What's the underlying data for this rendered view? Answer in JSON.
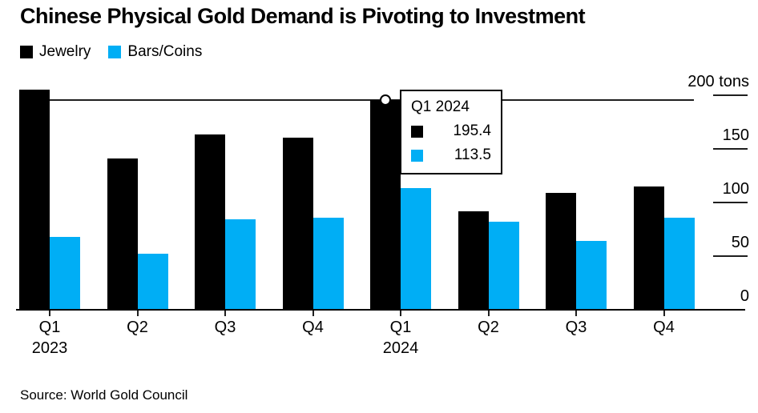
{
  "title": "Chinese Physical Gold Demand is Pivoting to Investment",
  "source": "Source: World Gold Council",
  "legend": [
    {
      "label": "Jewelry",
      "color": "#000000"
    },
    {
      "label": "Bars/Coins",
      "color": "#00aef5"
    }
  ],
  "tooltip": {
    "title": "Q1 2024",
    "rows": [
      {
        "series": "Jewelry",
        "color": "#000000",
        "value": "195.4"
      },
      {
        "series": "Bars/Coins",
        "color": "#00aef5",
        "value": "113.5"
      }
    ]
  },
  "y_axis": {
    "ticks": [
      {
        "value": 200,
        "label": "200 tons"
      },
      {
        "value": 150,
        "label": "150"
      },
      {
        "value": 100,
        "label": "100"
      },
      {
        "value": 50,
        "label": "50"
      },
      {
        "value": 0,
        "label": "0"
      }
    ]
  },
  "x_axis": {
    "labels": [
      {
        "q": "Q1",
        "year": "2023"
      },
      {
        "q": "Q2",
        "year": ""
      },
      {
        "q": "Q3",
        "year": ""
      },
      {
        "q": "Q4",
        "year": ""
      },
      {
        "q": "Q1",
        "year": "2024"
      },
      {
        "q": "Q2",
        "year": ""
      },
      {
        "q": "Q3",
        "year": ""
      },
      {
        "q": "Q4",
        "year": ""
      }
    ]
  },
  "chart_data": {
    "type": "bar",
    "title": "Chinese Physical Gold Demand is Pivoting to Investment",
    "unit": "tons",
    "categories": [
      "Q1 2023",
      "Q2 2023",
      "Q3 2023",
      "Q4 2023",
      "Q1 2024",
      "Q2 2024",
      "Q3 2024",
      "Q4 2024"
    ],
    "series": [
      {
        "name": "Jewelry",
        "color": "#000000",
        "values": [
          205,
          141,
          163,
          160,
          195.4,
          92,
          109,
          115
        ]
      },
      {
        "name": "Bars/Coins",
        "color": "#00aef5",
        "values": [
          68,
          52,
          84,
          86,
          113.5,
          82,
          64,
          86
        ]
      }
    ],
    "ylim": [
      0,
      218
    ],
    "y_ticks": [
      0,
      50,
      100,
      150,
      200
    ],
    "grid": false,
    "legend_position": "top-left",
    "highlight": {
      "category": "Q1 2024",
      "marker_series": "Jewelry",
      "crosshair_value": 195.4
    }
  }
}
